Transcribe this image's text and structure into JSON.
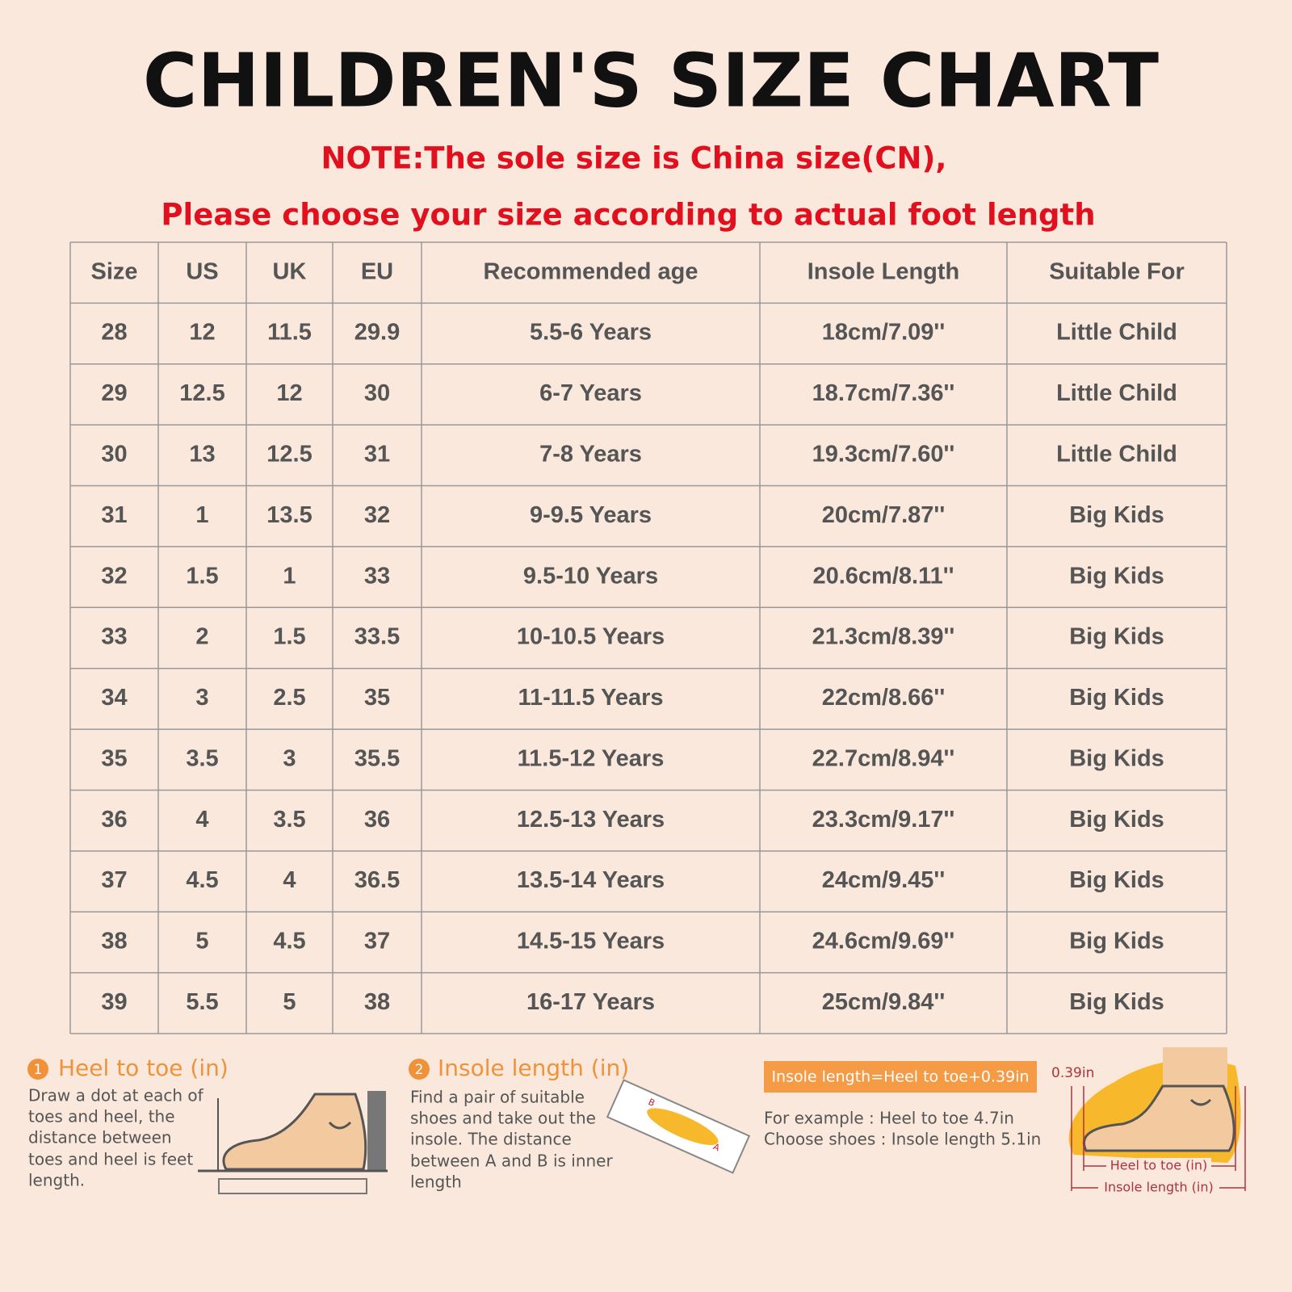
{
  "header": {
    "title": "CHILDREN'S SIZE CHART",
    "notes": [
      "NOTE:The sole size is China size(CN),",
      "Please choose your size according to actual foot length"
    ]
  },
  "table": {
    "columns": [
      "Size",
      "US",
      "UK",
      "EU",
      "Recommended age",
      "Insole Length",
      "Suitable For"
    ],
    "rows": [
      [
        "28",
        "12",
        "11.5",
        "29.9",
        "5.5-6 Years",
        "18cm/7.09''",
        "Little Child"
      ],
      [
        "29",
        "12.5",
        "12",
        "30",
        "6-7 Years",
        "18.7cm/7.36''",
        "Little Child"
      ],
      [
        "30",
        "13",
        "12.5",
        "31",
        "7-8 Years",
        "19.3cm/7.60''",
        "Little Child"
      ],
      [
        "31",
        "1",
        "13.5",
        "32",
        "9-9.5 Years",
        "20cm/7.87''",
        "Big Kids"
      ],
      [
        "32",
        "1.5",
        "1",
        "33",
        "9.5-10 Years",
        "20.6cm/8.11''",
        "Big Kids"
      ],
      [
        "33",
        "2",
        "1.5",
        "33.5",
        "10-10.5 Years",
        "21.3cm/8.39''",
        "Big Kids"
      ],
      [
        "34",
        "3",
        "2.5",
        "35",
        "11-11.5 Years",
        "22cm/8.66''",
        "Big Kids"
      ],
      [
        "35",
        "3.5",
        "3",
        "35.5",
        "11.5-12 Years",
        "22.7cm/8.94''",
        "Big Kids"
      ],
      [
        "36",
        "4",
        "3.5",
        "36",
        "12.5-13 Years",
        "23.3cm/9.17''",
        "Big Kids"
      ],
      [
        "37",
        "4.5",
        "4",
        "36.5",
        "13.5-14 Years",
        "24cm/9.45''",
        "Big Kids"
      ],
      [
        "38",
        "5",
        "4.5",
        "37",
        "14.5-15 Years",
        "24.6cm/9.69''",
        "Big Kids"
      ],
      [
        "39",
        "5.5",
        "5",
        "38",
        "16-17 Years",
        "25cm/9.84''",
        "Big Kids"
      ]
    ]
  },
  "guide": {
    "step1": {
      "number": "1",
      "title": "Heel to toe (in)",
      "lines": [
        "Draw a dot at each of",
        "toes and heel, the",
        "distance between",
        "toes and heel is feet",
        "length."
      ]
    },
    "step2": {
      "number": "2",
      "title": "Insole length (in)",
      "lines": [
        "Find a pair of suitable",
        "shoes and take out the",
        "insole. The distance",
        "between A and B is inner",
        "length"
      ],
      "point_a": "A",
      "point_b": "B"
    },
    "formula": "Insole length=Heel to toe+0.39in",
    "example": [
      "For example : Heel to toe  4.7in",
      "Choose shoes : Insole length 5.1in"
    ],
    "diagram": {
      "gap": "0.39in",
      "heel_to_toe": "Heel to toe (in)",
      "insole_length": "Insole length (in)"
    }
  }
}
